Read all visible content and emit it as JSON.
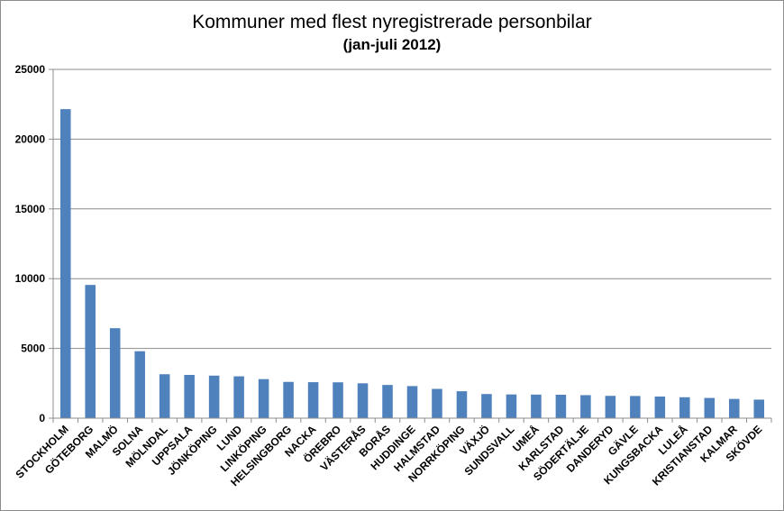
{
  "chart_data": {
    "type": "bar",
    "title": "Kommuner med flest nyregistrerade personbilar",
    "subtitle": "(jan-juli 2012)",
    "xlabel": "",
    "ylabel": "",
    "ylim": [
      0,
      25000
    ],
    "yticks": [
      0,
      5000,
      10000,
      15000,
      20000,
      25000
    ],
    "grid": true,
    "legend": "none",
    "bar_color": "#4f81bd",
    "categories": [
      "STOCKHOLM",
      "GÖTEBORG",
      "MALMÖ",
      "SOLNA",
      "MÖLNDAL",
      "UPPSALA",
      "JÖNKÖPING",
      "LUND",
      "LINKÖPING",
      "HELSINGBORG",
      "NACKA",
      "ÖREBRO",
      "VÄSTERÅS",
      "BORÅS",
      "HUDDINGE",
      "HALMSTAD",
      "NORRKÖPING",
      "VÄXJÖ",
      "SUNDSVALL",
      "UMEÅ",
      "KARLSTAD",
      "SÖDERTÄLJE",
      "DANDERYD",
      "GÄVLE",
      "KUNGSBACKA",
      "LULEÅ",
      "KRISTIANSTAD",
      "KALMAR",
      "SKÖVDE"
    ],
    "values": [
      22150,
      9550,
      6450,
      4800,
      3150,
      3100,
      3050,
      3000,
      2800,
      2600,
      2580,
      2570,
      2500,
      2380,
      2300,
      2100,
      1930,
      1730,
      1700,
      1690,
      1680,
      1650,
      1600,
      1590,
      1550,
      1500,
      1450,
      1380,
      1330
    ]
  }
}
